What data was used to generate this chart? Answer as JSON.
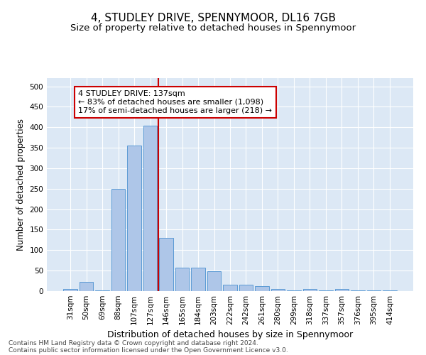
{
  "title_line1": "4, STUDLEY DRIVE, SPENNYMOOR, DL16 7GB",
  "title_line2": "Size of property relative to detached houses in Spennymoor",
  "xlabel": "Distribution of detached houses by size in Spennymoor",
  "ylabel": "Number of detached properties",
  "categories": [
    "31sqm",
    "50sqm",
    "69sqm",
    "88sqm",
    "107sqm",
    "127sqm",
    "146sqm",
    "165sqm",
    "184sqm",
    "203sqm",
    "222sqm",
    "242sqm",
    "261sqm",
    "280sqm",
    "299sqm",
    "318sqm",
    "337sqm",
    "357sqm",
    "376sqm",
    "395sqm",
    "414sqm"
  ],
  "values": [
    5,
    23,
    1,
    250,
    355,
    403,
    130,
    57,
    57,
    48,
    16,
    15,
    12,
    5,
    2,
    6,
    2,
    6,
    2,
    2,
    2
  ],
  "bar_color": "#aec6e8",
  "bar_edge_color": "#5b9bd5",
  "vline_color": "#cc0000",
  "annotation_text": "4 STUDLEY DRIVE: 137sqm\n← 83% of detached houses are smaller (1,098)\n17% of semi-detached houses are larger (218) →",
  "annotation_box_color": "#ffffff",
  "annotation_box_edge": "#cc0000",
  "ylim": [
    0,
    520
  ],
  "yticks": [
    0,
    50,
    100,
    150,
    200,
    250,
    300,
    350,
    400,
    450,
    500
  ],
  "bg_color": "#dce8f5",
  "footer_line1": "Contains HM Land Registry data © Crown copyright and database right 2024.",
  "footer_line2": "Contains public sector information licensed under the Open Government Licence v3.0.",
  "title_fontsize": 11,
  "subtitle_fontsize": 9.5,
  "xlabel_fontsize": 9,
  "ylabel_fontsize": 8.5,
  "tick_fontsize": 7.5,
  "footer_fontsize": 6.5,
  "annot_fontsize": 8
}
